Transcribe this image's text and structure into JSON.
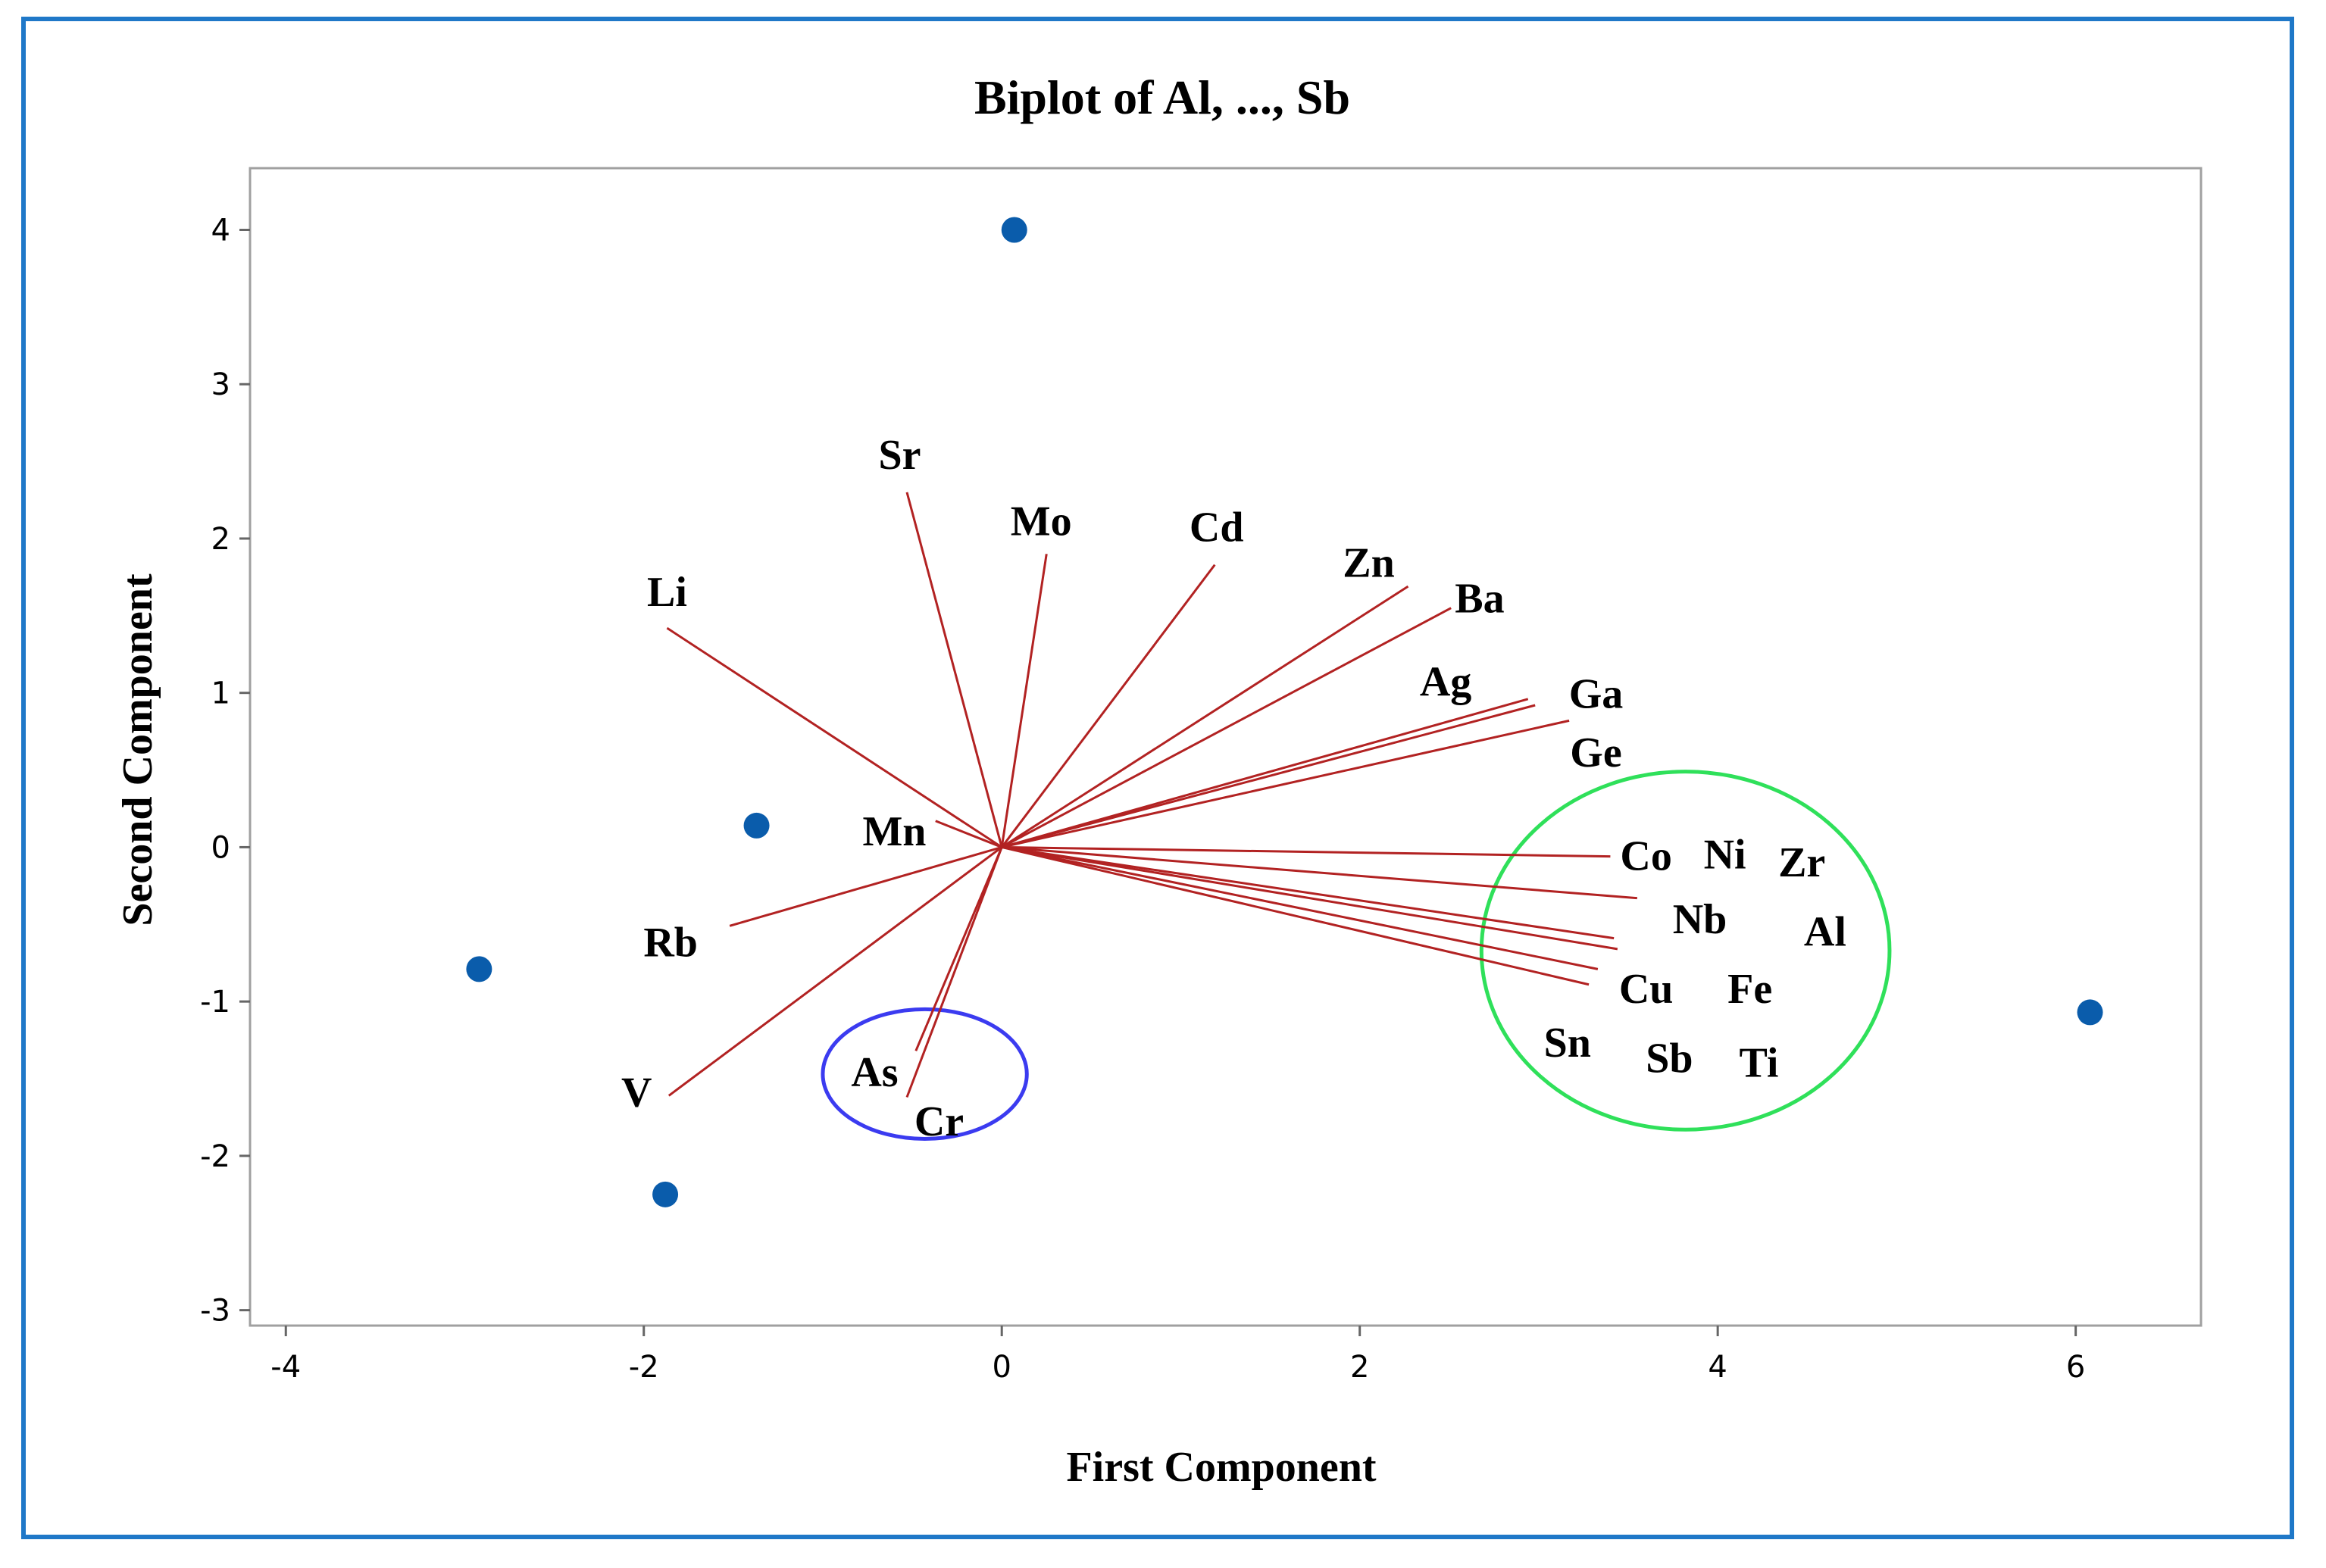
{
  "chart_data": {
    "type": "scatter",
    "title": "Biplot of Al, ..., Sb",
    "xlabel": "First Component",
    "ylabel": "Second Component",
    "xlim": [
      -4.2,
      6.7
    ],
    "ylim": [
      -3.1,
      4.4
    ],
    "xticks": [
      -4,
      -2,
      0,
      2,
      4,
      6
    ],
    "yticks": [
      -3,
      -2,
      -1,
      0,
      1,
      2,
      3,
      4
    ],
    "grid": false,
    "colors": {
      "points": "#0a5cab",
      "vectors": "#b22222",
      "frame": "#1f78c8",
      "plot_border": "#a0a0a0",
      "ellipse_green": "#2fe05a",
      "ellipse_blue": "#3b3bf0"
    },
    "points": [
      {
        "x": 0.07,
        "y": 4.0
      },
      {
        "x": -1.37,
        "y": 0.14
      },
      {
        "x": -2.92,
        "y": -0.79
      },
      {
        "x": -1.88,
        "y": -2.25
      },
      {
        "x": 6.08,
        "y": -1.07
      }
    ],
    "vectors": [
      {
        "name": "Sr",
        "x": -0.53,
        "y": 2.3,
        "lx": -0.57,
        "ly": 2.55
      },
      {
        "name": "Mo",
        "x": 0.25,
        "y": 1.9,
        "lx": 0.22,
        "ly": 2.12
      },
      {
        "name": "Cd",
        "x": 1.19,
        "y": 1.83,
        "lx": 1.2,
        "ly": 2.08
      },
      {
        "name": "Zn",
        "x": 2.27,
        "y": 1.69,
        "lx": 2.05,
        "ly": 1.85
      },
      {
        "name": "Ba",
        "x": 2.51,
        "y": 1.55,
        "lx": 2.67,
        "ly": 1.62
      },
      {
        "name": "Li",
        "x": -1.87,
        "y": 1.42,
        "lx": -1.87,
        "ly": 1.66
      },
      {
        "name": "Ag",
        "x": 2.94,
        "y": 0.96,
        "lx": 2.48,
        "ly": 1.08
      },
      {
        "name": "Ga",
        "x": 2.98,
        "y": 0.92,
        "lx": 3.32,
        "ly": 1.0
      },
      {
        "name": "Ge",
        "x": 3.17,
        "y": 0.82,
        "lx": 3.32,
        "ly": 0.62
      },
      {
        "name": "Mn",
        "x": -0.37,
        "y": 0.17,
        "lx": -0.6,
        "ly": 0.11
      },
      {
        "name": "Co",
        "x": 3.4,
        "y": -0.06,
        "lx": 3.6,
        "ly": -0.05
      },
      {
        "name": "Nb",
        "x": 3.55,
        "y": -0.33,
        "lx": 3.9,
        "ly": -0.46
      },
      {
        "name": "Rb",
        "x": -1.52,
        "y": -0.51,
        "lx": -1.85,
        "ly": -0.61
      },
      {
        "name": "Cu",
        "x": 3.42,
        "y": -0.59,
        "lx": 3.6,
        "ly": -0.91
      },
      {
        "name": "Fe",
        "x": 3.44,
        "y": -0.66,
        "lx": 4.18,
        "ly": -0.91
      },
      {
        "name": "Sn",
        "x": 3.33,
        "y": -0.79,
        "lx": 3.16,
        "ly": -1.26
      },
      {
        "name": "Sb",
        "x": 3.28,
        "y": -0.89,
        "lx": 3.73,
        "ly": -1.36
      },
      {
        "name": "As",
        "x": -0.48,
        "y": -1.32,
        "lx": -0.71,
        "ly": -1.45
      },
      {
        "name": "Cr",
        "x": -0.53,
        "y": -1.62,
        "lx": -0.35,
        "ly": -1.77
      },
      {
        "name": "V",
        "x": -1.86,
        "y": -1.61,
        "lx": -2.04,
        "ly": -1.58
      }
    ],
    "extra_labels": [
      {
        "name": "Ni",
        "lx": 4.04,
        "ly": -0.04
      },
      {
        "name": "Zr",
        "lx": 4.47,
        "ly": -0.09
      },
      {
        "name": "Al",
        "lx": 4.6,
        "ly": -0.54
      },
      {
        "name": "Ti",
        "lx": 4.23,
        "ly": -1.39
      }
    ],
    "ellipses": [
      {
        "cx": 3.82,
        "cy": -0.67,
        "rx": 1.14,
        "ry": 1.16,
        "color": "green"
      },
      {
        "cx": -0.43,
        "cy": -1.47,
        "rx": 0.57,
        "ry": 0.42,
        "color": "blue"
      }
    ]
  }
}
